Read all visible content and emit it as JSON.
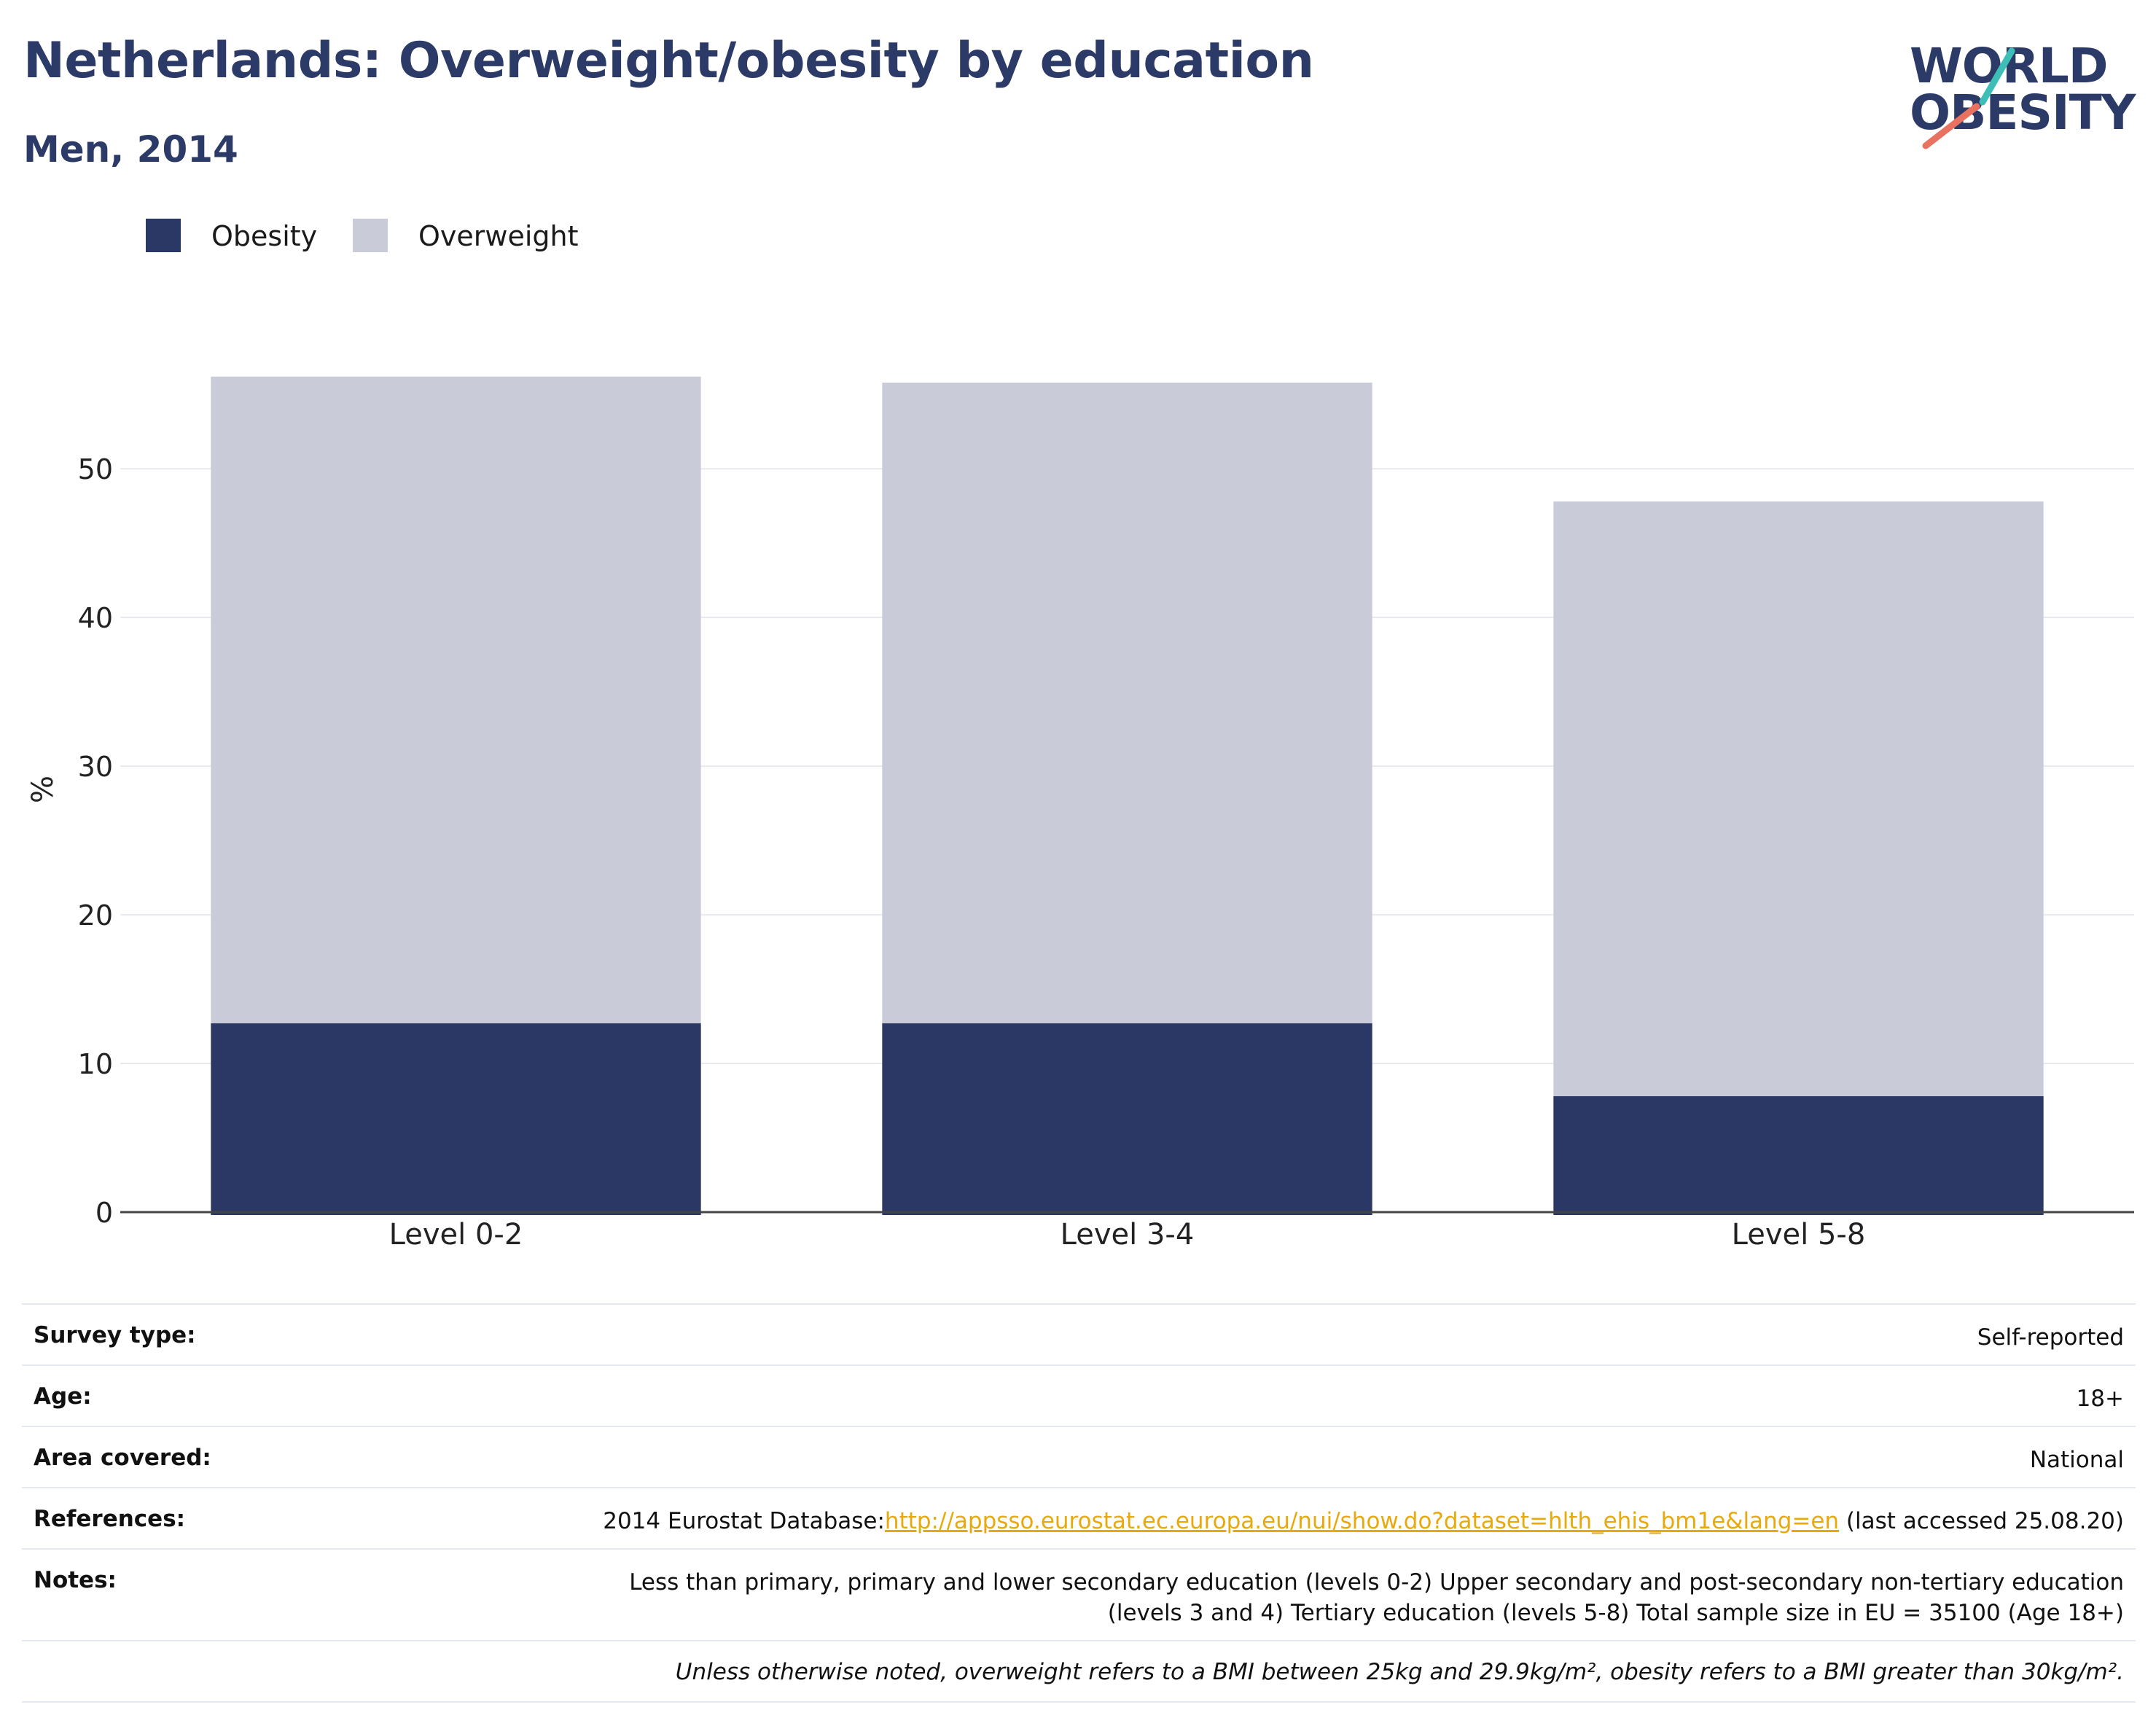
{
  "header": {
    "title": "Netherlands: Overweight/obesity by education",
    "subtitle": "Men, 2014"
  },
  "logo": {
    "line1": "WORLD",
    "line2": "OBESITY",
    "accent_teal": "#3dbfb8",
    "accent_coral": "#e8725f",
    "text_color": "#2b3a67"
  },
  "legend": [
    {
      "label": "Obesity",
      "color": "#2b3765"
    },
    {
      "label": "Overweight",
      "color": "#c9ccd8"
    }
  ],
  "chart_data": {
    "type": "bar",
    "stacked": true,
    "categories": [
      "Level 0-2",
      "Level 3-4",
      "Level 5-8"
    ],
    "series": [
      {
        "name": "Obesity",
        "color": "#2b3765",
        "values": [
          12.7,
          12.7,
          7.8
        ]
      },
      {
        "name": "Overweight",
        "color": "#c9ccd8",
        "values": [
          43.5,
          43.1,
          40.0
        ]
      }
    ],
    "ylabel": "%",
    "ylim": [
      0,
      58
    ],
    "yticks": [
      0,
      10,
      20,
      30,
      40,
      50
    ],
    "grid": true,
    "legend_position": "top-left"
  },
  "info": {
    "survey_type": {
      "key": "Survey type:",
      "value": "Self-reported"
    },
    "age": {
      "key": "Age:",
      "value": "18+"
    },
    "area": {
      "key": "Area covered:",
      "value": "National"
    },
    "references": {
      "key": "References:",
      "prefix": "2014 Eurostat Database:",
      "link": "http://appsso.eurostat.ec.europa.eu/nui/show.do?dataset=hlth_ehis_bm1e&lang=en",
      "suffix": " (last accessed 25.08.20)"
    },
    "notes": {
      "key": "Notes:",
      "line1": "Less than primary, primary and lower secondary education (levels 0-2) Upper secondary and post-secondary non-tertiary education",
      "line2": "(levels 3 and 4) Tertiary education (levels 5-8) Total sample size in EU = 35100 (Age 18+)"
    },
    "footnote": "Unless otherwise noted, overweight refers to a BMI between 25kg and 29.9kg/m², obesity refers to a BMI greater than 30kg/m²."
  }
}
